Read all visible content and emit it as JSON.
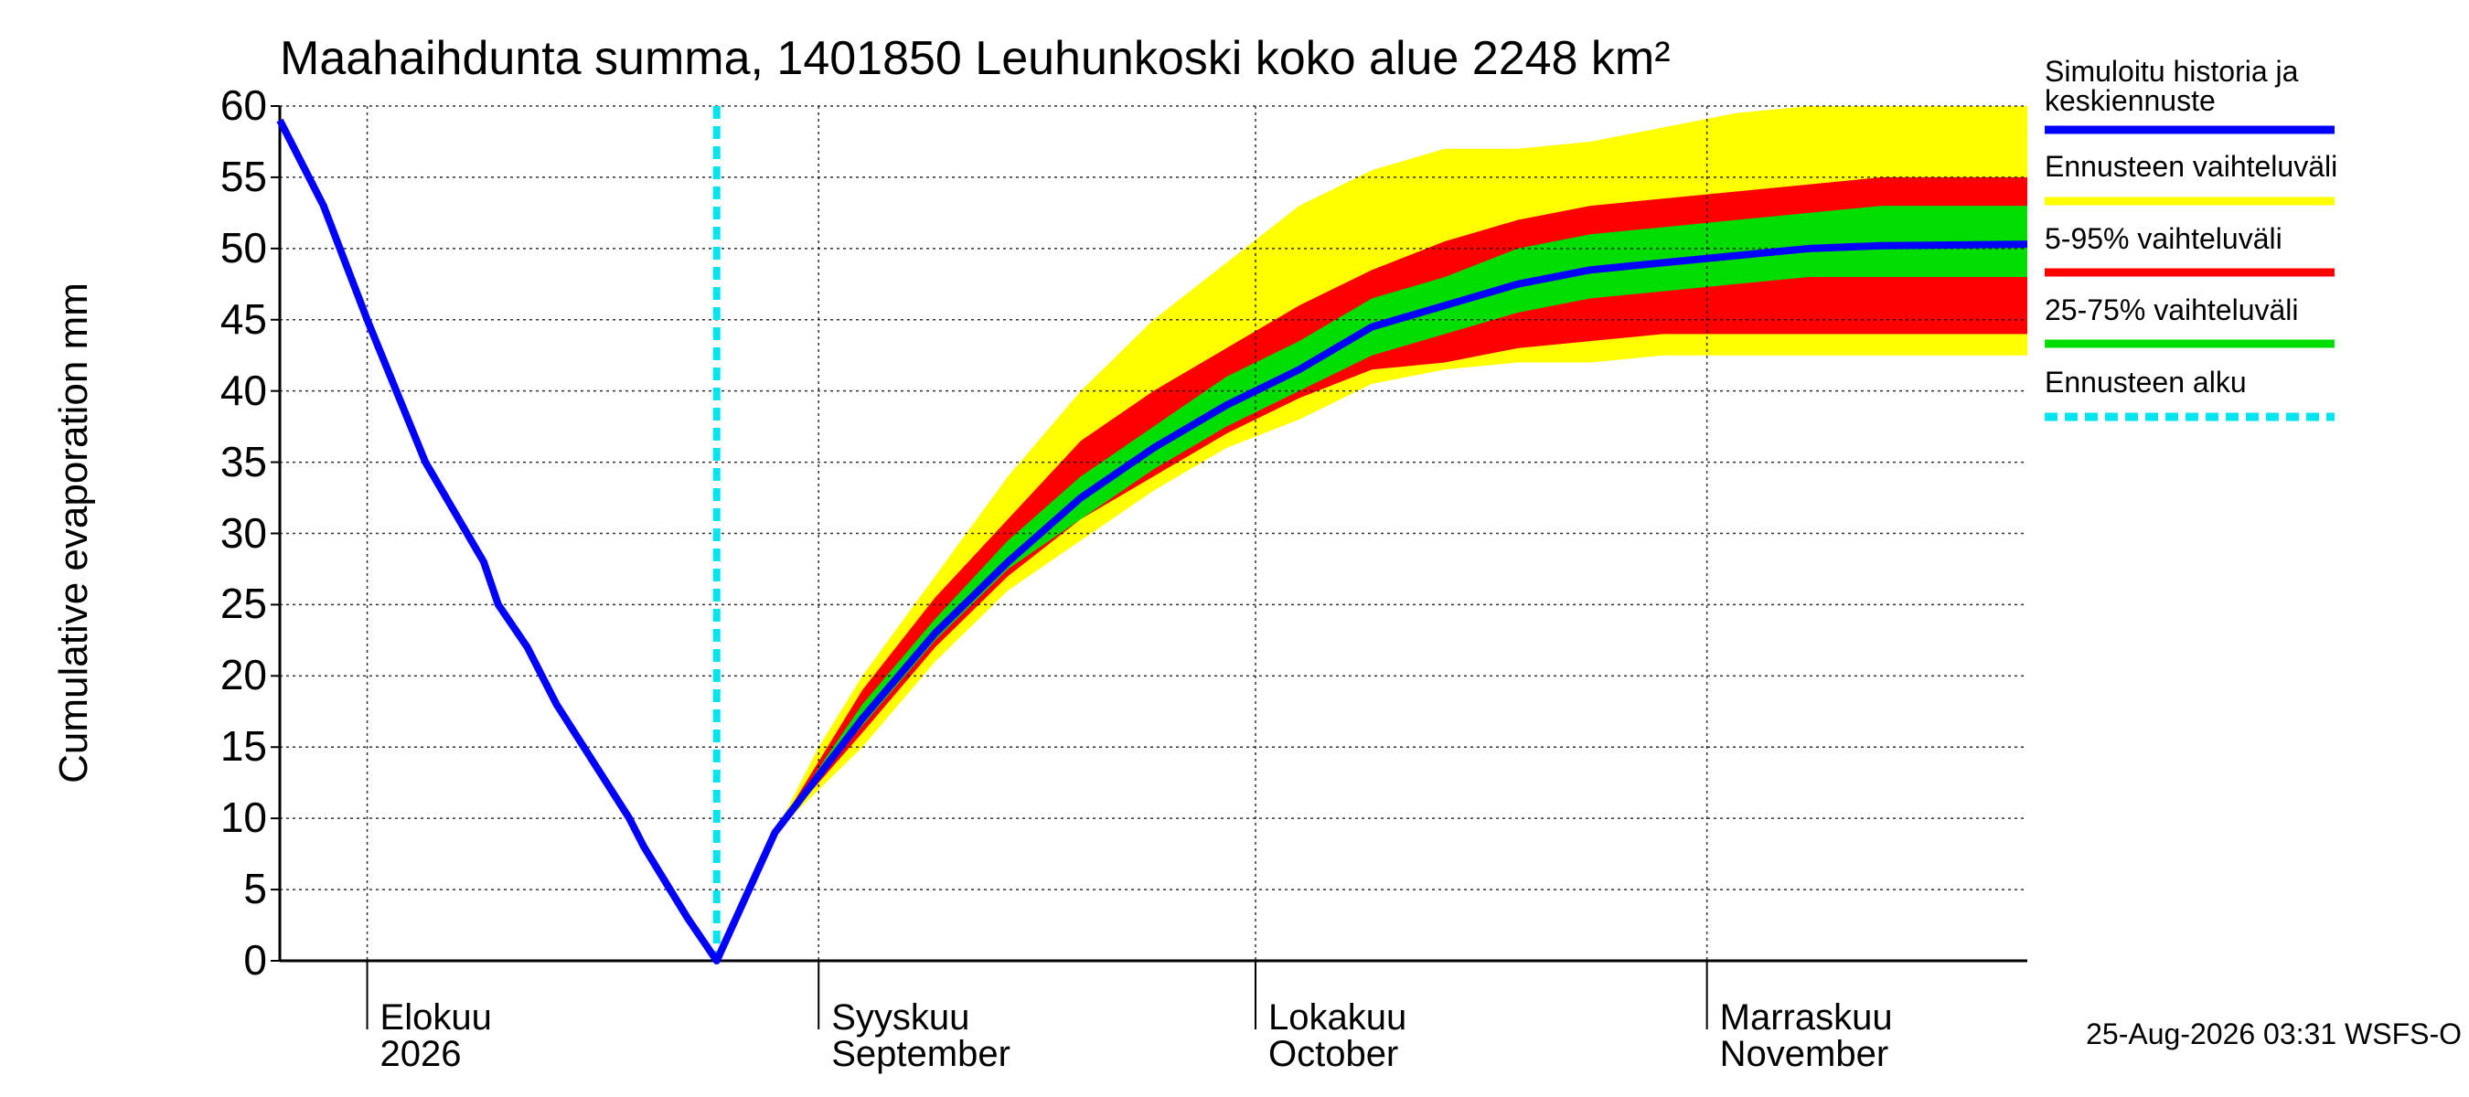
{
  "chart_data": {
    "type": "line",
    "title": "Maahaihdunta summa, 1401850 Leuhunkoski koko alue 2248 km²",
    "y_label": "Cumulative evaporation   mm",
    "timestamp": "25-Aug-2026 03:31 WSFS-O",
    "xlim": [
      0,
      120
    ],
    "xticks": [
      {
        "value": 6,
        "label": "Elokuu\n2026"
      },
      {
        "value": 37,
        "label": "Syyskuu\nSeptember"
      },
      {
        "value": 67,
        "label": "Lokakuu\nOctober"
      },
      {
        "value": 98,
        "label": "Marraskuu\nNovember"
      }
    ],
    "ylim": [
      0,
      60
    ],
    "yticks": [
      0,
      5,
      10,
      15,
      20,
      25,
      30,
      35,
      40,
      45,
      50,
      55,
      60
    ],
    "grid": true,
    "band_x": [
      30,
      34,
      37,
      40,
      45,
      50,
      55,
      60,
      65,
      70,
      75,
      80,
      85,
      90,
      95,
      100,
      105,
      110,
      115,
      120
    ],
    "bands": [
      {
        "name": "Ennusteen vaihteluväli",
        "color": "#ffff00",
        "upper": [
          0,
          9,
          15,
          20,
          27,
          34,
          40,
          45,
          49,
          53,
          55.5,
          57,
          57,
          57.5,
          58.5,
          59.5,
          60,
          60,
          60,
          60
        ],
        "lower": [
          0,
          9,
          12,
          15,
          21,
          26,
          29.5,
          33,
          36,
          38,
          40.5,
          41.5,
          42,
          42,
          42.5,
          42.5,
          42.5,
          42.5,
          42.5,
          42.5
        ]
      },
      {
        "name": "5-95% vaihteluväli",
        "color": "#ff0000",
        "upper": [
          0,
          9,
          14,
          19,
          25.5,
          31,
          36.5,
          40,
          43,
          46,
          48.5,
          50.5,
          52,
          53,
          53.5,
          54,
          54.5,
          55,
          55,
          55
        ],
        "lower": [
          0,
          9,
          12.5,
          16,
          22,
          27,
          31,
          34,
          37,
          39.5,
          41.5,
          42,
          43,
          43.5,
          44,
          44,
          44,
          44,
          44,
          44
        ]
      },
      {
        "name": "25-75% vaihteluväli",
        "color": "#00dd00",
        "upper": [
          0,
          9,
          13.5,
          18,
          24,
          29.5,
          34,
          37.5,
          41,
          43.5,
          46.5,
          48,
          50,
          51,
          51.5,
          52,
          52.5,
          53,
          53,
          53
        ],
        "lower": [
          0,
          9,
          13,
          16.5,
          22.5,
          27.5,
          31,
          34.5,
          37.5,
          40,
          42.5,
          44,
          45.5,
          46.5,
          47,
          47.5,
          48,
          48,
          48,
          48
        ]
      }
    ],
    "series": [
      {
        "name": "Simuloitu historia ja\nkeskiennuste",
        "color": "#0000ff",
        "x": [
          0,
          3,
          6,
          10,
          14,
          15,
          17,
          19,
          24,
          25,
          28,
          30,
          34,
          37,
          40,
          45,
          50,
          55,
          60,
          65,
          70,
          75,
          80,
          85,
          90,
          95,
          100,
          105,
          110,
          120
        ],
        "values": [
          59,
          53,
          45,
          35,
          28,
          25,
          22,
          18,
          10,
          8,
          3,
          0,
          9,
          13,
          17,
          23,
          28,
          32.5,
          36,
          39,
          41.5,
          44.5,
          46,
          47.5,
          48.5,
          49,
          49.5,
          50,
          50.2,
          50.3
        ]
      }
    ],
    "forecast_start": {
      "name": "Ennusteen alku",
      "x": 30,
      "color": "#00e5ee"
    }
  }
}
